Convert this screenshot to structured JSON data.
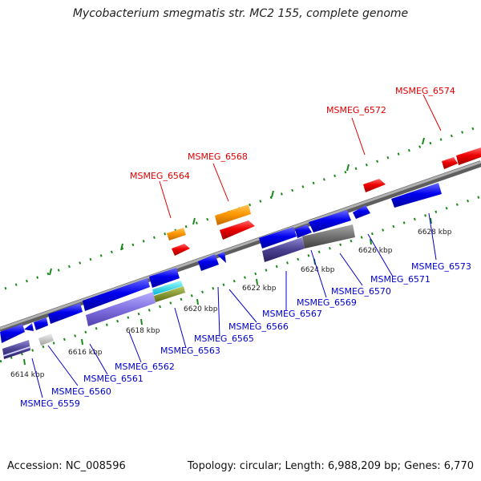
{
  "title": "Mycobacterium smegmatis str. MC2 155, complete genome",
  "footer": {
    "accession": "Accession: NC_008596",
    "summary": "Topology: circular; Length: 6,988,209 bp; Genes: 6,770"
  },
  "tick_labels": [
    "6614 kbp",
    "6616 kbp",
    "6618 kbp",
    "6620 kbp",
    "6622 kbp",
    "6624 kbp",
    "6626 kbp",
    "6628 kbp"
  ],
  "genes_top": [
    "MSMEG_6564",
    "MSMEG_6568",
    "MSMEG_6572",
    "MSMEG_6574"
  ],
  "genes_bottom": [
    "MSMEG_6559",
    "MSMEG_6560",
    "MSMEG_6561",
    "MSMEG_6562",
    "MSMEG_6563",
    "MSMEG_6565",
    "MSMEG_6566",
    "MSMEG_6567",
    "MSMEG_6569",
    "MSMEG_6570",
    "MSMEG_6571",
    "MSMEG_6573"
  ],
  "colors": {
    "forward_cds": "#ff0000",
    "forward_other": "#ff9900",
    "reverse_cds": "#0000ff",
    "backbone": "#888888",
    "tick": "#1a8a1a",
    "label_top": "#e00000",
    "label_bottom": "#0000cc"
  }
}
